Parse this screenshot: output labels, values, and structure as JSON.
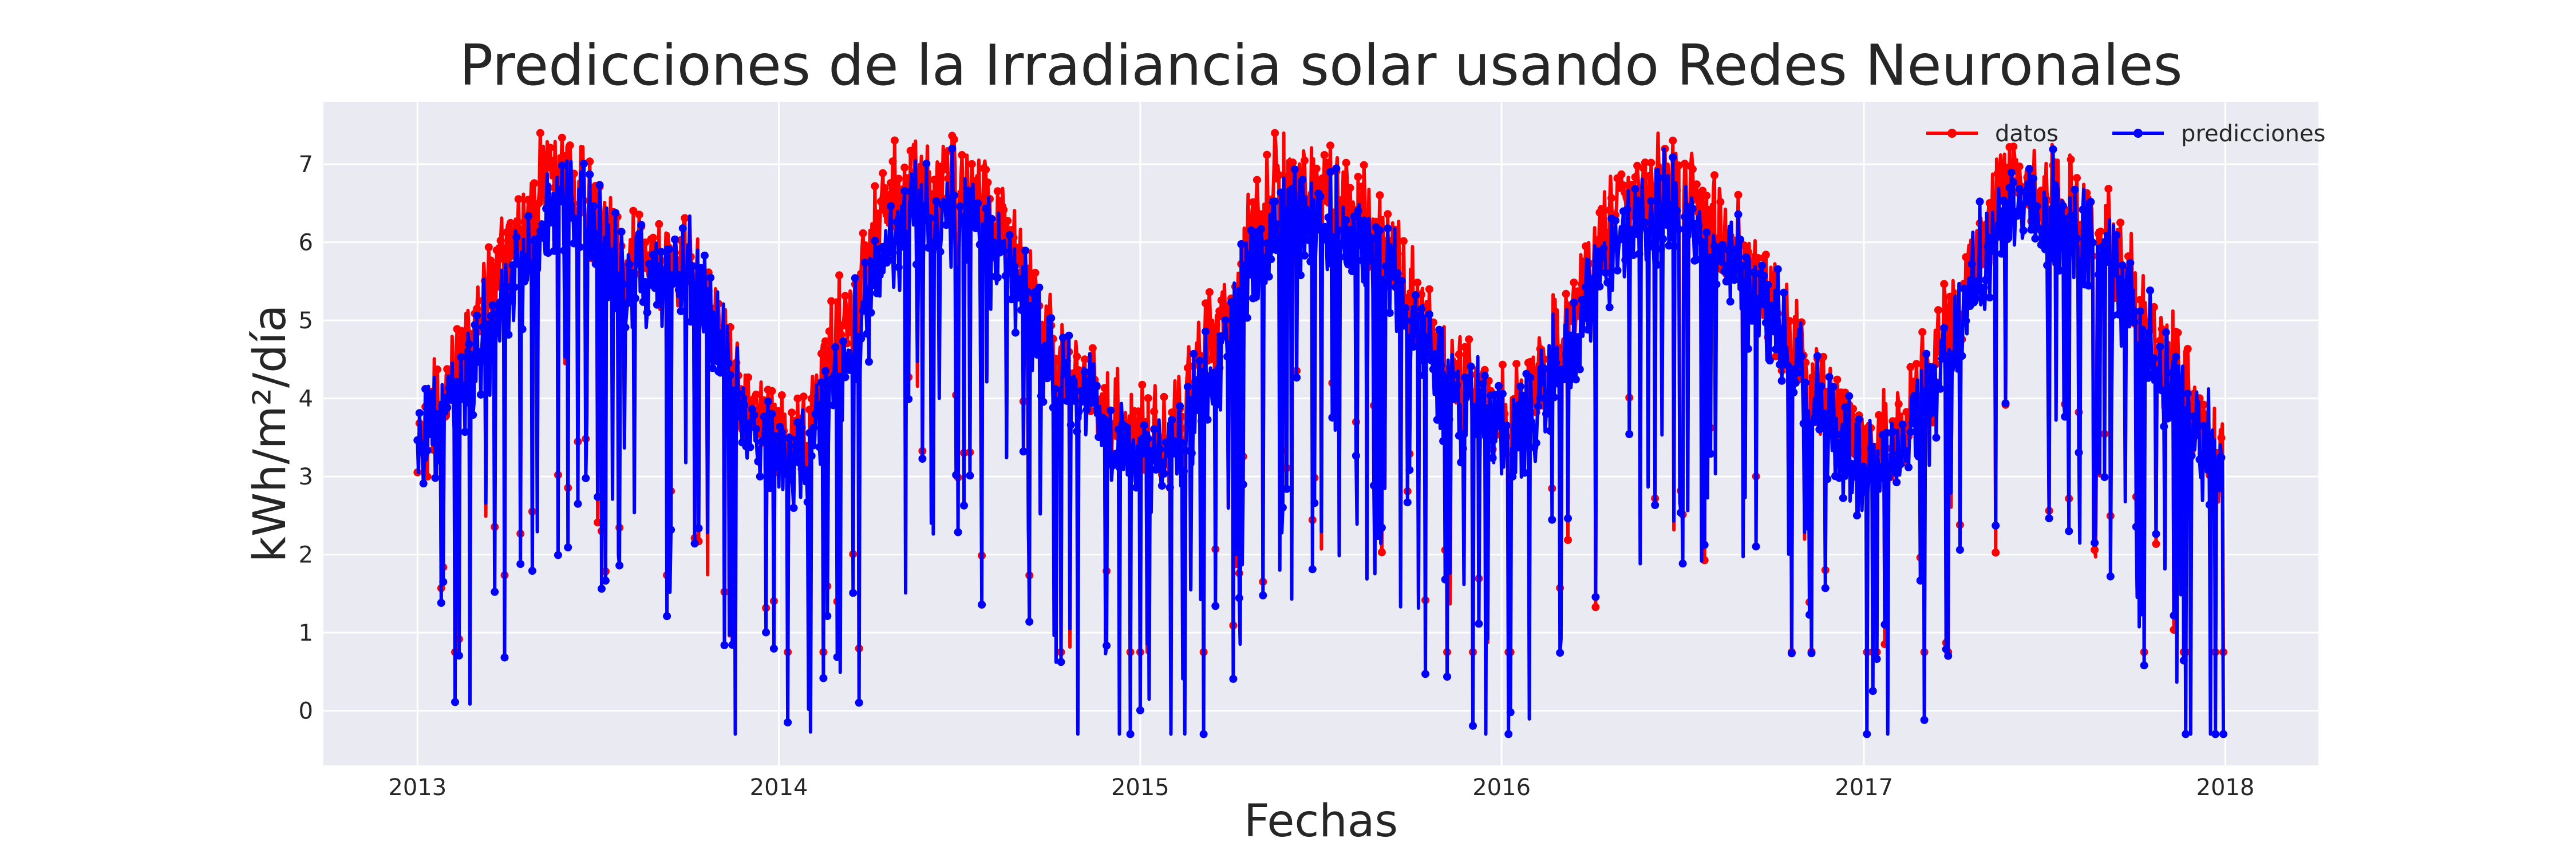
{
  "chart_data": {
    "type": "line",
    "title": "Predicciones de la Irradiancia solar usando Redes Neuronales",
    "xlabel": "Fechas",
    "ylabel": "kWh/m²/día",
    "xlim": [
      "2012-09-28",
      "2018-04-05"
    ],
    "ylim": [
      -0.7,
      7.8
    ],
    "x_ticks": [
      "2013",
      "2014",
      "2015",
      "2016",
      "2017",
      "2018"
    ],
    "y_ticks": [
      "0",
      "1",
      "2",
      "3",
      "4",
      "5",
      "6",
      "7"
    ],
    "grid": true,
    "legend_position": "top-right",
    "background_color": "#eaeaf2",
    "grid_color": "#ffffff",
    "x_start": "2013-01-01",
    "x_end": "2017-12-31",
    "series": [
      {
        "name": "datos",
        "color": "#ff0000",
        "marker": "circle",
        "seasonal_curve_x": [
          "2013-01-01",
          "2013-03-01",
          "2013-05-15",
          "2013-06-15",
          "2013-08-01",
          "2013-10-01",
          "2013-12-01",
          "2014-01-20",
          "2014-03-15",
          "2014-05-01",
          "2014-06-20",
          "2014-08-15",
          "2014-10-15",
          "2014-12-15",
          "2015-02-01",
          "2015-04-01",
          "2015-05-20",
          "2015-07-01",
          "2015-09-01",
          "2015-11-01",
          "2016-01-10",
          "2016-03-15",
          "2016-05-01",
          "2016-06-20",
          "2016-08-15",
          "2016-10-15",
          "2016-12-15",
          "2017-02-01",
          "2017-04-01",
          "2017-05-20",
          "2017-07-01",
          "2017-09-01",
          "2017-11-01",
          "2017-12-31"
        ],
        "seasonal_curve_y": [
          3.3,
          4.9,
          6.9,
          6.8,
          5.6,
          5.9,
          3.8,
          3.3,
          5.2,
          6.6,
          6.7,
          6.2,
          4.5,
          3.5,
          3.4,
          5.3,
          6.8,
          6.6,
          6.1,
          4.5,
          3.6,
          5.0,
          6.6,
          6.8,
          6.2,
          4.8,
          3.5,
          3.3,
          5.0,
          6.6,
          6.6,
          6.1,
          4.5,
          3.1
        ],
        "min_value": 0.75,
        "max_value": 7.4
      },
      {
        "name": "predicciones",
        "color": "#0000ff",
        "marker": "circle",
        "seasonal_curve_x": [
          "2013-01-01",
          "2013-03-01",
          "2013-05-15",
          "2013-06-15",
          "2013-08-01",
          "2013-10-01",
          "2013-12-01",
          "2014-01-20",
          "2014-03-15",
          "2014-05-01",
          "2014-06-20",
          "2014-08-15",
          "2014-10-15",
          "2014-12-15",
          "2015-02-01",
          "2015-04-01",
          "2015-05-20",
          "2015-07-01",
          "2015-09-01",
          "2015-11-01",
          "2016-01-10",
          "2016-03-15",
          "2016-05-01",
          "2016-06-20",
          "2016-08-15",
          "2016-10-15",
          "2016-12-15",
          "2017-02-01",
          "2017-04-01",
          "2017-05-20",
          "2017-07-01",
          "2017-09-01",
          "2017-11-01",
          "2017-12-31"
        ],
        "seasonal_curve_y": [
          3.4,
          4.5,
          6.4,
          6.6,
          5.5,
          5.8,
          3.7,
          3.2,
          4.8,
          6.2,
          6.5,
          6.0,
          4.4,
          3.4,
          3.3,
          5.0,
          6.4,
          6.3,
          5.9,
          4.4,
          3.5,
          4.7,
          6.3,
          6.6,
          6.0,
          4.7,
          3.4,
          3.2,
          4.8,
          6.4,
          6.4,
          5.9,
          4.4,
          3.0
        ],
        "min_value": -0.3,
        "max_value": 7.2
      }
    ]
  }
}
